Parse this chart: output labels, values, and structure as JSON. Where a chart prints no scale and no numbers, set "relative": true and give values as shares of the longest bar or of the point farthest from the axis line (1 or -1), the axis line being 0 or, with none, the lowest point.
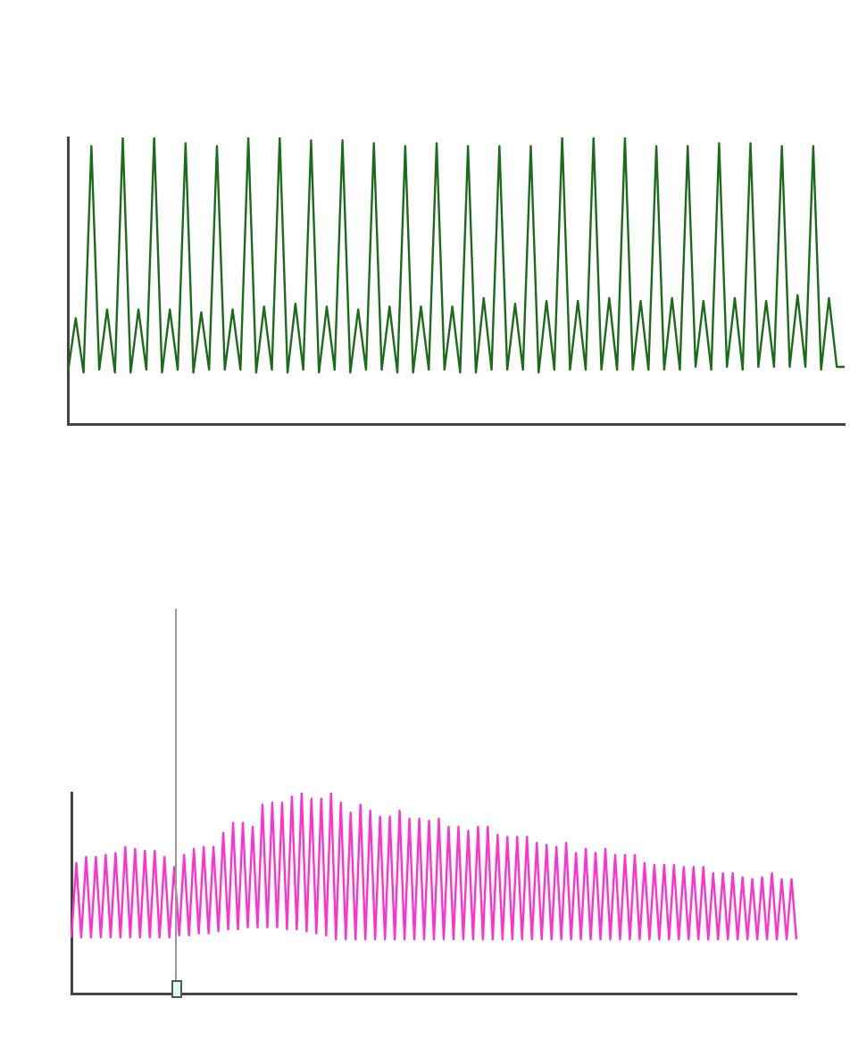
{
  "chart_data": [
    {
      "type": "line",
      "relative": true,
      "grid": false,
      "legend": false,
      "marker": "none",
      "categories": [
        null,
        null,
        null,
        null,
        null,
        null,
        null,
        null,
        null,
        null,
        null,
        null,
        null,
        null,
        null,
        null,
        null,
        null,
        null,
        null,
        null,
        null,
        null,
        null,
        null,
        null,
        null,
        null,
        null,
        null,
        null,
        null,
        null,
        null,
        null,
        null,
        null,
        null,
        null,
        null,
        null,
        null,
        null,
        null,
        null,
        null,
        null,
        null,
        null,
        null,
        null,
        null,
        null,
        null,
        null,
        null,
        null,
        null,
        null,
        null,
        null,
        null,
        null,
        null,
        null,
        null,
        null,
        null,
        null,
        null,
        null,
        null,
        null,
        null,
        null,
        null,
        null,
        null,
        null,
        null,
        null,
        null,
        null,
        null,
        null,
        null,
        null,
        null,
        null,
        null,
        null,
        null,
        null,
        null,
        null,
        null,
        null,
        null,
        null,
        null
      ],
      "series": [
        {
          "color": "#1a6b1a",
          "values": [
            0.18,
            0.37,
            0.18,
            0.97,
            0.19,
            0.4,
            0.18,
            1.0,
            0.18,
            0.4,
            0.19,
            1.0,
            0.18,
            0.4,
            0.19,
            0.98,
            0.18,
            0.39,
            0.19,
            0.97,
            0.19,
            0.4,
            0.19,
            1.0,
            0.18,
            0.41,
            0.19,
            1.0,
            0.18,
            0.42,
            0.19,
            0.99,
            0.18,
            0.41,
            0.19,
            0.99,
            0.18,
            0.4,
            0.19,
            0.98,
            0.19,
            0.41,
            0.18,
            0.97,
            0.18,
            0.41,
            0.19,
            0.98,
            0.19,
            0.41,
            0.18,
            0.97,
            0.18,
            0.44,
            0.19,
            0.97,
            0.19,
            0.42,
            0.19,
            0.97,
            0.18,
            0.43,
            0.19,
            1.0,
            0.19,
            0.43,
            0.19,
            1.0,
            0.19,
            0.44,
            0.19,
            1.0,
            0.19,
            0.43,
            0.19,
            0.97,
            0.19,
            0.44,
            0.19,
            0.97,
            0.2,
            0.43,
            0.19,
            0.98,
            0.2,
            0.44,
            0.19,
            0.98,
            0.2,
            0.43,
            0.2,
            0.97,
            0.2,
            0.45,
            0.2,
            0.97,
            0.19,
            0.44,
            0.2,
            0.2
          ]
        }
      ]
    },
    {
      "type": "line",
      "relative": true,
      "grid": false,
      "legend": false,
      "marker": "none",
      "categories": [
        null,
        null,
        null,
        null,
        null,
        null,
        null,
        null,
        null,
        null,
        null,
        null,
        null,
        null,
        null,
        null,
        null,
        null,
        null,
        null,
        null,
        null,
        null,
        null,
        null,
        null,
        null,
        null,
        null,
        null,
        null,
        null,
        null,
        null,
        null,
        null,
        null,
        null,
        null,
        null,
        null,
        null,
        null,
        null,
        null,
        null,
        null,
        null,
        null,
        null,
        null,
        null,
        null,
        null,
        null,
        null,
        null,
        null,
        null,
        null,
        null,
        null,
        null,
        null,
        null,
        null,
        null,
        null,
        null,
        null,
        null,
        null,
        null,
        null,
        null,
        null,
        null,
        null,
        null,
        null,
        null,
        null,
        null,
        null,
        null,
        null,
        null,
        null,
        null,
        null,
        null,
        null,
        null,
        null,
        null,
        null,
        null,
        null,
        null,
        null,
        null,
        null,
        null,
        null,
        null,
        null,
        null,
        null,
        null,
        null,
        null,
        null,
        null,
        null,
        null,
        null,
        null,
        null,
        null,
        null,
        null,
        null,
        null,
        null,
        null,
        null,
        null,
        null,
        null,
        null,
        null,
        null,
        null,
        null,
        null,
        null,
        null,
        null,
        null,
        null,
        null,
        null,
        null,
        null,
        null,
        null,
        null,
        null,
        null
      ],
      "series": [
        {
          "color": "#ff33cc",
          "values": [
            0.28,
            0.65,
            0.28,
            0.68,
            0.28,
            0.68,
            0.28,
            0.69,
            0.28,
            0.7,
            0.28,
            0.73,
            0.28,
            0.72,
            0.28,
            0.71,
            0.28,
            0.71,
            0.28,
            0.68,
            0.28,
            0.63,
            0.29,
            0.69,
            0.29,
            0.72,
            0.3,
            0.73,
            0.3,
            0.73,
            0.31,
            0.8,
            0.32,
            0.85,
            0.32,
            0.85,
            0.33,
            0.83,
            0.33,
            0.94,
            0.33,
            0.95,
            0.33,
            0.95,
            0.32,
            0.98,
            0.32,
            1.0,
            0.31,
            0.97,
            0.3,
            0.97,
            0.29,
            1.0,
            0.27,
            0.95,
            0.27,
            0.9,
            0.27,
            0.94,
            0.27,
            0.91,
            0.27,
            0.88,
            0.27,
            0.88,
            0.27,
            0.91,
            0.27,
            0.87,
            0.27,
            0.87,
            0.27,
            0.86,
            0.27,
            0.87,
            0.27,
            0.83,
            0.27,
            0.83,
            0.27,
            0.81,
            0.27,
            0.83,
            0.27,
            0.83,
            0.27,
            0.79,
            0.27,
            0.78,
            0.27,
            0.78,
            0.27,
            0.78,
            0.27,
            0.75,
            0.27,
            0.74,
            0.27,
            0.73,
            0.27,
            0.75,
            0.27,
            0.7,
            0.27,
            0.72,
            0.27,
            0.7,
            0.27,
            0.72,
            0.27,
            0.69,
            0.27,
            0.69,
            0.27,
            0.69,
            0.27,
            0.65,
            0.27,
            0.64,
            0.27,
            0.64,
            0.27,
            0.64,
            0.27,
            0.63,
            0.27,
            0.63,
            0.27,
            0.63,
            0.27,
            0.6,
            0.27,
            0.6,
            0.27,
            0.6,
            0.27,
            0.58,
            0.27,
            0.57,
            0.27,
            0.58,
            0.27,
            0.6,
            0.27,
            0.57,
            0.27,
            0.57,
            0.27
          ]
        }
      ]
    }
  ]
}
